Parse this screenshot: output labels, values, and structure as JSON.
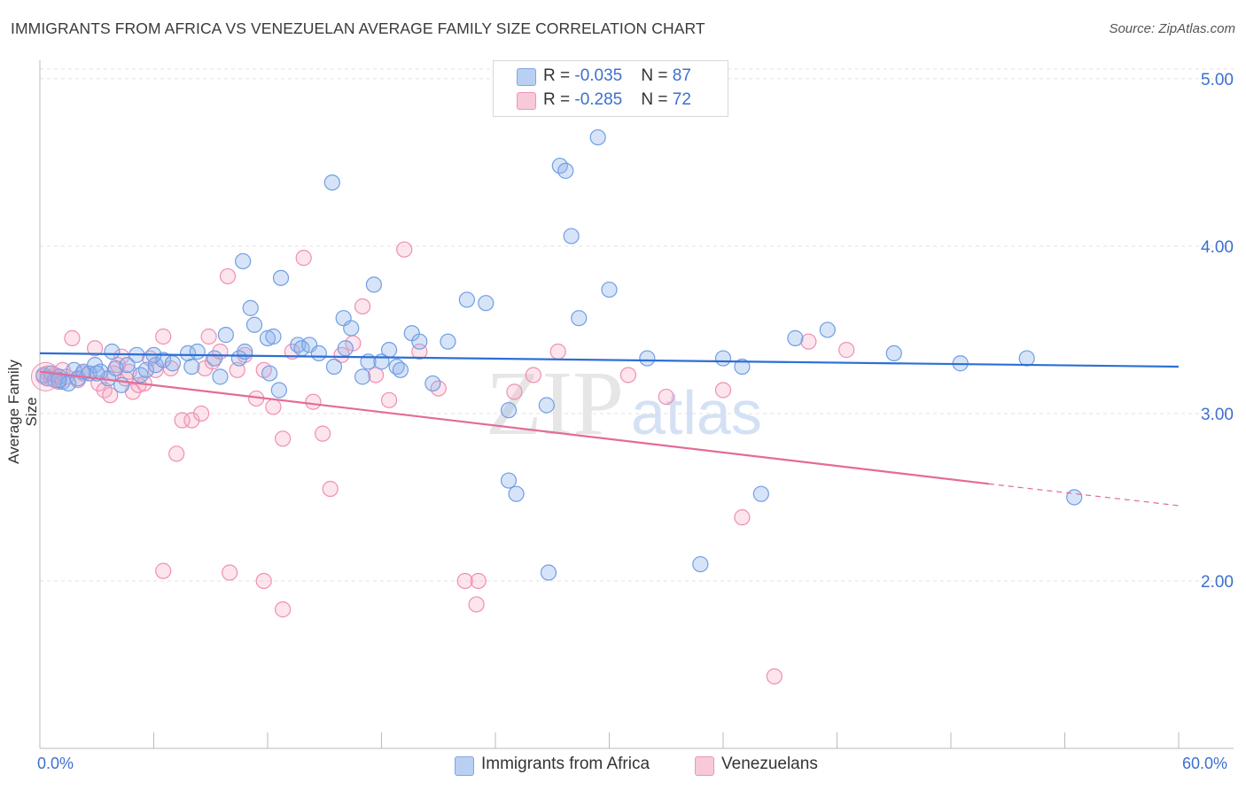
{
  "title": "IMMIGRANTS FROM AFRICA VS VENEZUELAN AVERAGE FAMILY SIZE CORRELATION CHART",
  "source": "Source: ZipAtlas.com",
  "watermark": {
    "zip": "ZIP",
    "atlas": "atlas"
  },
  "legend": {
    "rows": [
      {
        "r_label": "R = ",
        "r_value": "-0.035",
        "n_label": "N = ",
        "n_value": "87"
      },
      {
        "r_label": "R = ",
        "r_value": "-0.285",
        "n_label": "N = ",
        "n_value": "72"
      }
    ]
  },
  "bottom_legend": [
    "Immigrants from Africa",
    "Venezuelans"
  ],
  "chart_data": {
    "type": "scatter",
    "title": "IMMIGRANTS FROM AFRICA VS VENEZUELAN AVERAGE FAMILY SIZE CORRELATION CHART",
    "xlabel": "",
    "ylabel": "Average Family Size",
    "xlim": [
      0,
      60
    ],
    "ylim": [
      1.0,
      5.1
    ],
    "x_tick_labels": [
      "0.0%",
      "60.0%"
    ],
    "y_ticks": [
      2.0,
      3.0,
      4.0,
      5.0
    ],
    "y_tick_labels": [
      "2.00",
      "3.00",
      "4.00",
      "5.00"
    ],
    "grid": true,
    "legend_position": "top-center",
    "series": [
      {
        "name": "Immigrants from Africa",
        "color": "#6f9ee6",
        "trend": {
          "x": [
            0,
            60
          ],
          "y": [
            3.36,
            3.28
          ]
        },
        "points": [
          [
            0.2,
            3.23
          ],
          [
            0.4,
            3.21
          ],
          [
            0.6,
            3.24
          ],
          [
            0.8,
            3.2
          ],
          [
            1.0,
            3.22
          ],
          [
            1.2,
            3.19
          ],
          [
            1.5,
            3.18
          ],
          [
            1.8,
            3.26
          ],
          [
            2.0,
            3.21
          ],
          [
            2.3,
            3.25
          ],
          [
            2.6,
            3.24
          ],
          [
            2.9,
            3.29
          ],
          [
            3.2,
            3.25
          ],
          [
            3.6,
            3.21
          ],
          [
            3.8,
            3.37
          ],
          [
            4.0,
            3.27
          ],
          [
            4.3,
            3.17
          ],
          [
            4.6,
            3.29
          ],
          [
            5.1,
            3.35
          ],
          [
            5.3,
            3.23
          ],
          [
            5.6,
            3.26
          ],
          [
            6.1,
            3.29
          ],
          [
            6.5,
            3.32
          ],
          [
            7.0,
            3.3
          ],
          [
            7.8,
            3.36
          ],
          [
            8.3,
            3.37
          ],
          [
            9.2,
            3.33
          ],
          [
            9.5,
            3.22
          ],
          [
            9.8,
            3.47
          ],
          [
            10.5,
            3.33
          ],
          [
            10.8,
            3.37
          ],
          [
            11.1,
            3.63
          ],
          [
            11.3,
            3.53
          ],
          [
            12.0,
            3.45
          ],
          [
            12.3,
            3.46
          ],
          [
            12.1,
            3.24
          ],
          [
            12.6,
            3.14
          ],
          [
            13.6,
            3.41
          ],
          [
            13.8,
            3.39
          ],
          [
            14.2,
            3.41
          ],
          [
            14.7,
            3.36
          ],
          [
            15.4,
            4.38
          ],
          [
            15.5,
            3.28
          ],
          [
            16.0,
            3.57
          ],
          [
            16.1,
            3.39
          ],
          [
            16.4,
            3.51
          ],
          [
            17.0,
            3.22
          ],
          [
            17.3,
            3.31
          ],
          [
            17.6,
            3.77
          ],
          [
            18.0,
            3.31
          ],
          [
            18.4,
            3.38
          ],
          [
            18.8,
            3.28
          ],
          [
            19.0,
            3.26
          ],
          [
            19.6,
            3.48
          ],
          [
            20.0,
            3.43
          ],
          [
            20.7,
            3.18
          ],
          [
            21.5,
            3.43
          ],
          [
            22.5,
            3.68
          ],
          [
            23.5,
            3.66
          ],
          [
            24.7,
            3.02
          ],
          [
            24.7,
            2.6
          ],
          [
            25.1,
            2.52
          ],
          [
            26.7,
            3.05
          ],
          [
            26.8,
            2.05
          ],
          [
            27.4,
            4.48
          ],
          [
            27.7,
            4.45
          ],
          [
            28.0,
            4.06
          ],
          [
            28.4,
            3.57
          ],
          [
            29.4,
            4.65
          ],
          [
            30.0,
            3.74
          ],
          [
            32.0,
            3.33
          ],
          [
            34.8,
            2.1
          ],
          [
            36.0,
            3.33
          ],
          [
            37.0,
            3.28
          ],
          [
            38.0,
            2.52
          ],
          [
            39.8,
            3.45
          ],
          [
            41.5,
            3.5
          ],
          [
            45.0,
            3.36
          ],
          [
            48.5,
            3.3
          ],
          [
            52.0,
            3.33
          ],
          [
            54.5,
            2.5
          ],
          [
            10.7,
            3.91
          ],
          [
            12.7,
            3.81
          ],
          [
            6.0,
            3.35
          ],
          [
            8.0,
            3.28
          ],
          [
            1.0,
            3.2
          ],
          [
            3.0,
            3.24
          ]
        ]
      },
      {
        "name": "Venezuelans",
        "color": "#f08fb0",
        "trend": {
          "x": [
            0,
            50
          ],
          "y": [
            3.25,
            2.58
          ],
          "dashed_to": {
            "x": 60,
            "y": 2.45
          }
        },
        "points": [
          [
            0.2,
            3.22
          ],
          [
            0.4,
            3.24
          ],
          [
            0.6,
            3.21
          ],
          [
            0.8,
            3.23
          ],
          [
            1.0,
            3.19
          ],
          [
            1.2,
            3.26
          ],
          [
            1.4,
            3.22
          ],
          [
            1.7,
            3.45
          ],
          [
            2.0,
            3.2
          ],
          [
            2.3,
            3.24
          ],
          [
            2.6,
            3.24
          ],
          [
            2.9,
            3.39
          ],
          [
            3.1,
            3.18
          ],
          [
            3.4,
            3.14
          ],
          [
            3.7,
            3.11
          ],
          [
            3.9,
            3.24
          ],
          [
            4.1,
            3.29
          ],
          [
            4.3,
            3.34
          ],
          [
            4.5,
            3.21
          ],
          [
            4.7,
            3.25
          ],
          [
            4.9,
            3.13
          ],
          [
            5.2,
            3.17
          ],
          [
            5.5,
            3.18
          ],
          [
            5.8,
            3.33
          ],
          [
            6.1,
            3.26
          ],
          [
            6.5,
            3.46
          ],
          [
            6.9,
            3.27
          ],
          [
            7.2,
            2.76
          ],
          [
            7.5,
            2.96
          ],
          [
            8.0,
            2.96
          ],
          [
            8.5,
            3.0
          ],
          [
            8.7,
            3.27
          ],
          [
            8.9,
            3.46
          ],
          [
            9.1,
            3.31
          ],
          [
            9.5,
            3.37
          ],
          [
            9.9,
            3.82
          ],
          [
            10.4,
            3.26
          ],
          [
            10.8,
            3.35
          ],
          [
            11.4,
            3.09
          ],
          [
            11.8,
            3.26
          ],
          [
            12.3,
            3.04
          ],
          [
            12.8,
            2.85
          ],
          [
            13.3,
            3.37
          ],
          [
            13.9,
            3.93
          ],
          [
            14.4,
            3.07
          ],
          [
            14.9,
            2.88
          ],
          [
            15.3,
            2.55
          ],
          [
            15.9,
            3.35
          ],
          [
            16.5,
            3.42
          ],
          [
            17.0,
            3.64
          ],
          [
            17.7,
            3.23
          ],
          [
            18.4,
            3.08
          ],
          [
            19.2,
            3.98
          ],
          [
            20.0,
            3.37
          ],
          [
            21.0,
            3.15
          ],
          [
            22.4,
            2.0
          ],
          [
            23.0,
            1.86
          ],
          [
            25.0,
            3.13
          ],
          [
            26.0,
            3.23
          ],
          [
            27.3,
            3.37
          ],
          [
            31.0,
            3.23
          ],
          [
            33.0,
            3.1
          ],
          [
            36.0,
            3.14
          ],
          [
            38.7,
            1.43
          ],
          [
            40.5,
            3.43
          ],
          [
            42.5,
            3.38
          ],
          [
            37.0,
            2.38
          ],
          [
            6.5,
            2.06
          ],
          [
            10.0,
            2.05
          ],
          [
            11.8,
            2.0
          ],
          [
            12.8,
            1.83
          ],
          [
            23.1,
            2.0
          ]
        ]
      }
    ]
  }
}
